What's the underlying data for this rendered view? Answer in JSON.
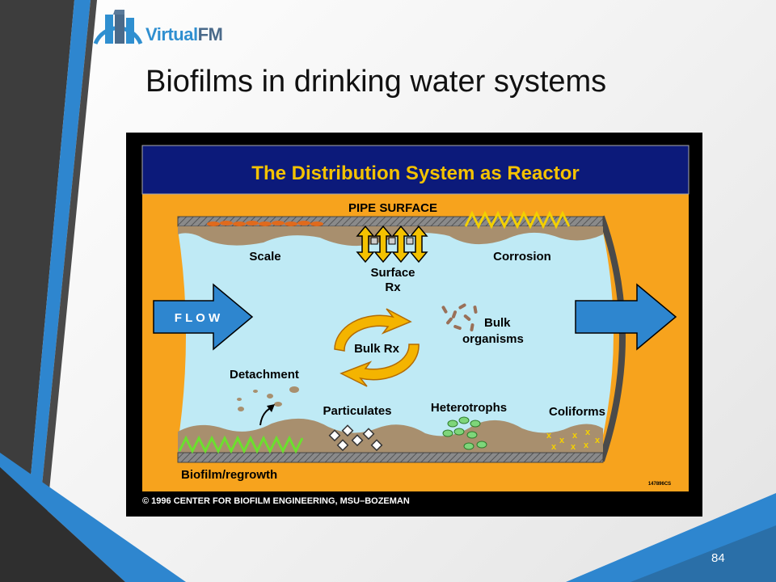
{
  "logo": {
    "text_a": "Virtual",
    "text_b": "FM"
  },
  "slide": {
    "title": "Biofilms in drinking water systems",
    "page_number": "84"
  },
  "diagram": {
    "header": "The Distribution System as Reactor",
    "pipe_surface": "PIPE SURFACE",
    "scale": "Scale",
    "surface_rx_line1": "Surface",
    "surface_rx_line2": "Rx",
    "corrosion": "Corrosion",
    "flow": "F L O W",
    "bulk_rx": "Bulk Rx",
    "bulk_organisms_line1": "Bulk",
    "bulk_organisms_line2": "organisms",
    "detachment": "Detachment",
    "particulates": "Particulates",
    "heterotrophs": "Heterotrophs",
    "coliforms": "Coliforms",
    "biofilm": "Biofilm/regrowth",
    "code": "147896CS",
    "copyright": "© 1996   CENTER FOR BIOFILM ENGINEERING, MSU–BOZEMAN"
  },
  "colors": {
    "accent_blue": "#2e86cf",
    "dark_stripe": "#3d3d3d",
    "header_navy": "#0c1a7a",
    "header_text": "#f4c200",
    "orange_bg": "#f7a31d",
    "water": "#bfeaf5"
  }
}
